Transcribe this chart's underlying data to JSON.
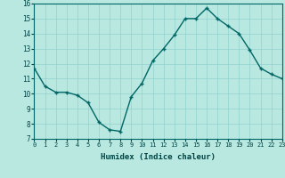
{
  "x": [
    0,
    1,
    2,
    3,
    4,
    5,
    6,
    7,
    8,
    9,
    10,
    11,
    12,
    13,
    14,
    15,
    16,
    17,
    18,
    19,
    20,
    21,
    22,
    23
  ],
  "y": [
    11.7,
    10.5,
    10.1,
    10.1,
    9.9,
    9.4,
    8.1,
    7.6,
    7.5,
    9.8,
    10.7,
    12.2,
    13.0,
    13.9,
    15.0,
    15.0,
    15.7,
    15.0,
    14.5,
    14.0,
    12.9,
    11.7,
    11.3,
    11.0
  ],
  "xlabel": "Humidex (Indice chaleur)",
  "ylim": [
    7,
    16
  ],
  "xlim": [
    0,
    23
  ],
  "yticks": [
    7,
    8,
    9,
    10,
    11,
    12,
    13,
    14,
    15,
    16
  ],
  "xticks": [
    0,
    1,
    2,
    3,
    4,
    5,
    6,
    7,
    8,
    9,
    10,
    11,
    12,
    13,
    14,
    15,
    16,
    17,
    18,
    19,
    20,
    21,
    22,
    23
  ],
  "line_color": "#006666",
  "marker": "+",
  "bg_color": "#b8e8e0",
  "grid_major_color": "#88cccc",
  "grid_minor_color": "#e8aaaa"
}
